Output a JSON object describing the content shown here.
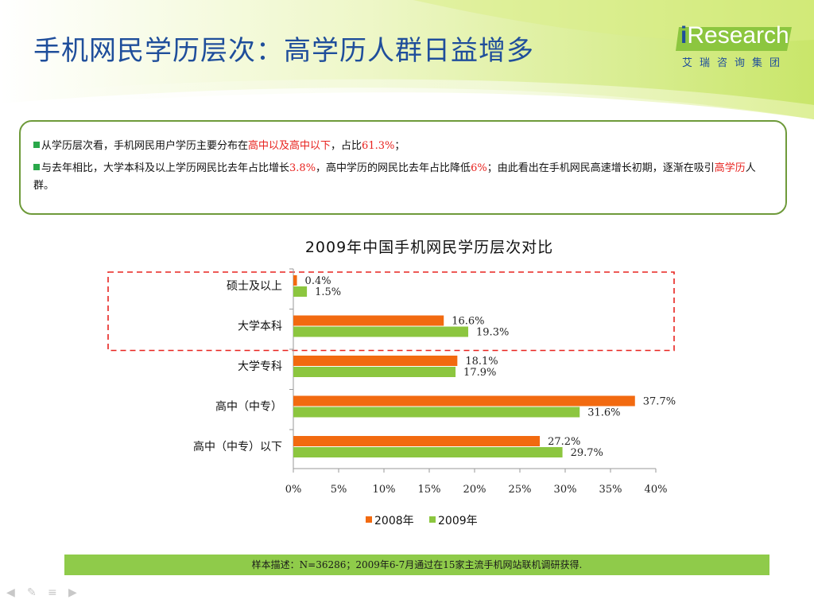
{
  "header": {
    "title": "手机网民学历层次：高学历人群日益增多",
    "logo_main_i": "i",
    "logo_main_rest": "Research",
    "logo_sub": "艾瑞咨询集团"
  },
  "summary": {
    "b1_pre": "从学历层次看，手机网民用户学历主要分布在",
    "b1_hl": "高中以及高中以下",
    "b1_mid": "，占比",
    "b1_val": "61.3%",
    "b1_end": "；",
    "b2_pre": "与去年相比，大学本科及以上学历网民比去年占比增长",
    "b2_val1": "3.8%",
    "b2_mid": "，高中学历的网民比去年占比降低",
    "b2_val2": "6%",
    "b2_mid2": "；由此看出在手机网民高速增长初期，逐渐在吸引",
    "b2_hl": "高学历",
    "b2_end": "人群。"
  },
  "chart_data": {
    "type": "bar",
    "orientation": "horizontal",
    "title": "2009年中国手机网民学历层次对比",
    "categories": [
      "硕士及以上",
      "大学本科",
      "大学专科",
      "高中（中专）",
      "高中（中专）以下"
    ],
    "series": [
      {
        "name": "2008年",
        "color": "#f26a10",
        "values": [
          0.4,
          16.6,
          18.1,
          37.7,
          27.2
        ],
        "labels": [
          "0.4%",
          "16.6%",
          "18.1%",
          "37.7%",
          "27.2%"
        ]
      },
      {
        "name": "2009年",
        "color": "#8cc63f",
        "values": [
          1.5,
          19.3,
          17.9,
          31.6,
          29.7
        ],
        "labels": [
          "1.5%",
          "19.3%",
          "17.9%",
          "31.6%",
          "29.7%"
        ]
      }
    ],
    "xlim": [
      0,
      40
    ],
    "xticks": [
      "0%",
      "5%",
      "10%",
      "15%",
      "20%",
      "25%",
      "30%",
      "35%",
      "40%"
    ],
    "legend": "bottom",
    "grid": false,
    "highlight_categories": [
      "硕士及以上",
      "大学本科"
    ]
  },
  "footer": {
    "note": "样本描述：N=36286；2009年6-7月通过在15家主流手机网站联机调研获得."
  },
  "colors": {
    "title": "#1f4e9b",
    "accent_green": "#8cc63f",
    "accent_orange": "#f26a10",
    "highlight_red": "#e8231f"
  }
}
